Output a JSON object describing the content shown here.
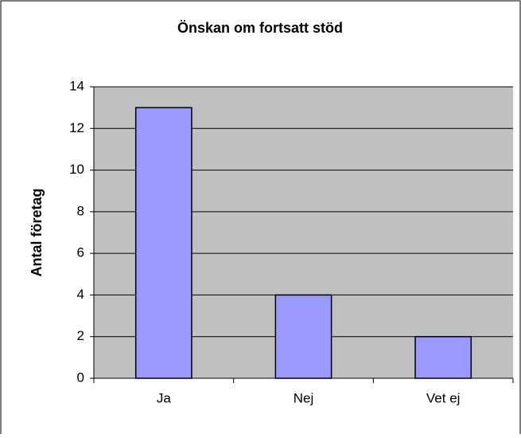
{
  "chart_data": {
    "type": "bar",
    "title": "Önskan om fortsatt stöd",
    "y_label": "Antal företag",
    "categories": [
      "Ja",
      "Nej",
      "Vet ej"
    ],
    "values": [
      13,
      4,
      2
    ],
    "color": "#9999ff",
    "ylim": [
      0,
      14
    ],
    "yticks": [
      0,
      2,
      4,
      6,
      8,
      10,
      12,
      14
    ],
    "grid": true
  }
}
